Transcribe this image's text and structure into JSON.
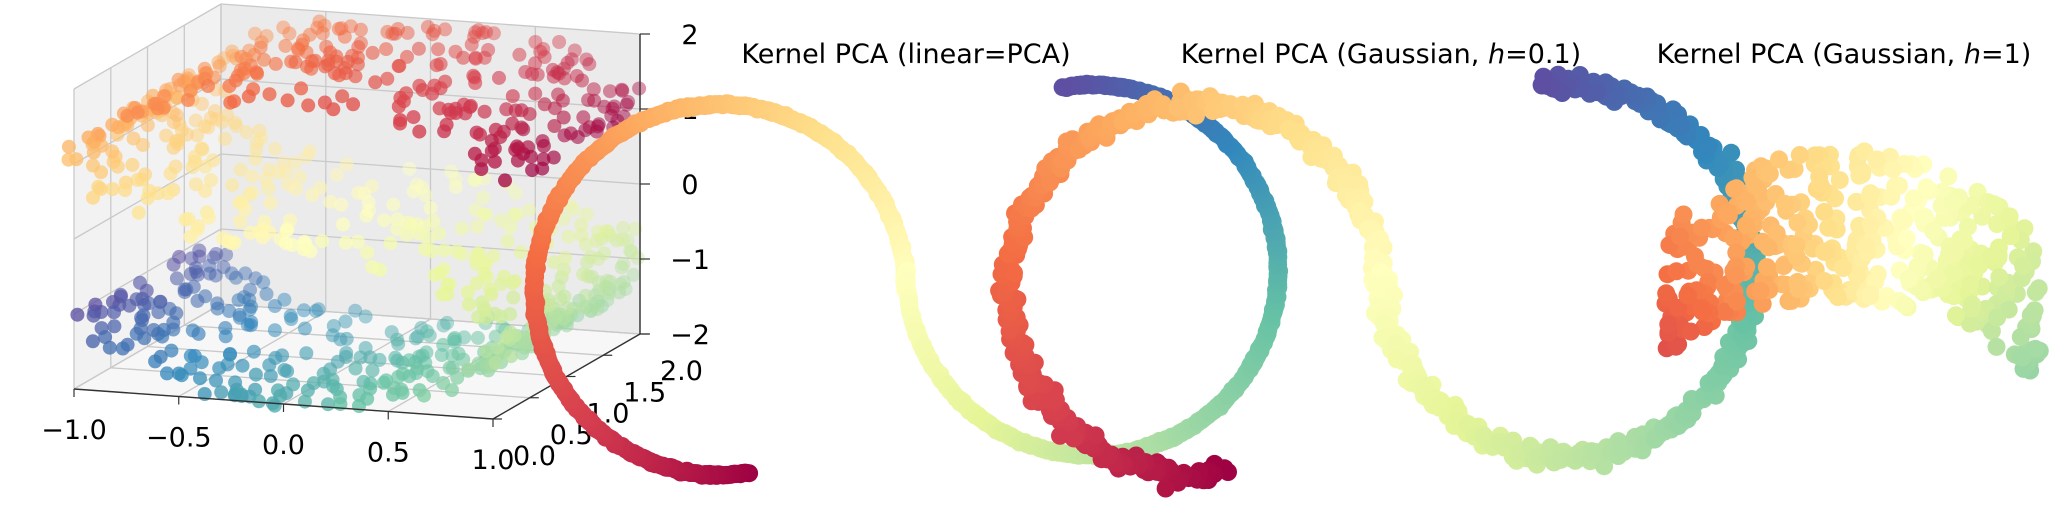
{
  "chart_data": [
    {
      "type": "scatter",
      "projection": "3d",
      "title": "",
      "description_series": "S-curve dataset (~1000 points) colored by position along the curve, Spectral colormap",
      "colormap": "Spectral",
      "x_ticks": [
        "−1.0",
        "−0.5",
        "0.0",
        "0.5",
        "1.0"
      ],
      "y_ticks": [
        "0.0",
        "0.5",
        "1.0",
        "1.5",
        "2.0"
      ],
      "z_ticks": [
        "2",
        "1",
        "0",
        "−1",
        "−2"
      ],
      "xlim": [
        -1,
        1
      ],
      "ylim": [
        0,
        2
      ],
      "zlim": [
        -2,
        2
      ],
      "grid": true,
      "legend": "none"
    },
    {
      "type": "scatter",
      "title_prefix": "Kernel PCA (linear=PCA)",
      "title_italic": "",
      "title_suffix": "",
      "colormap": "Spectral",
      "axes": "hidden"
    },
    {
      "type": "scatter",
      "title_prefix": "Kernel PCA (Gaussian, ",
      "title_italic": "h",
      "title_suffix": "=0.1)",
      "colormap": "Spectral",
      "axes": "hidden"
    },
    {
      "type": "scatter",
      "title_prefix": "Kernel PCA (Gaussian, ",
      "title_italic": "h",
      "title_suffix": "=1)",
      "colormap": "Spectral",
      "axes": "hidden"
    }
  ]
}
